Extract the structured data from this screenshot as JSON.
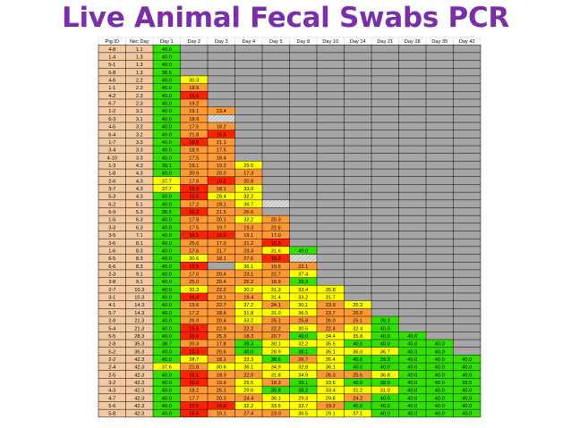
{
  "title": "Live Animal Fecal Swabs PCR",
  "colors": {
    "green": "#33e000",
    "yellow": "#ffff00",
    "orange": "#ff9933",
    "red": "#ff2200",
    "empty": "#a6a6a6",
    "hatch": "#dcdcdc",
    "id_cell": "#f3c8a2"
  },
  "chart_data": {
    "type": "table",
    "columns": [
      "Pig ID",
      "Nec Day",
      "Day 1",
      "Day 2",
      "Day 3",
      "Day 4",
      "Day 5",
      "Day 8",
      "Day 10",
      "Day 14",
      "Day 21",
      "Day 28",
      "Day 35",
      "Day 42"
    ],
    "rows": [
      [
        "4-8",
        "1.1",
        "40.0",
        "",
        "",
        "",
        "",
        "",
        "",
        "",
        "",
        "",
        "",
        ""
      ],
      [
        "1-4",
        "1.3",
        "40.0",
        "",
        "",
        "",
        "",
        "",
        "",
        "",
        "",
        "",
        "",
        ""
      ],
      [
        "5-1",
        "1.3",
        "40.0",
        "",
        "",
        "",
        "",
        "",
        "",
        "",
        "",
        "",
        "",
        ""
      ],
      [
        "6-8",
        "1.3",
        "38.5",
        "",
        "",
        "",
        "",
        "",
        "",
        "",
        "",
        "",
        "",
        ""
      ],
      [
        "4-6",
        "2.2",
        "40.0",
        "30.3",
        "",
        "",
        "",
        "",
        "",
        "",
        "",
        "",
        "",
        ""
      ],
      [
        "1-1",
        "2.3",
        "40.0",
        "18.9",
        "",
        "",
        "",
        "",
        "",
        "",
        "",
        "",
        "",
        ""
      ],
      [
        "4-2",
        "2.3",
        "40.0",
        "15.5",
        "",
        "",
        "",
        "",
        "",
        "",
        "",
        "",
        "",
        ""
      ],
      [
        "6-7",
        "2.3",
        "40.0",
        "19.2",
        "",
        "",
        "",
        "",
        "",
        "",
        "",
        "",
        "",
        ""
      ],
      [
        "1-2",
        "3.1",
        "40.0",
        "19.1",
        "23.4",
        "",
        "",
        "",
        "",
        "",
        "",
        "",
        "",
        ""
      ],
      [
        "6-3",
        "3.1",
        "40.0",
        "18.9",
        "/",
        "",
        "",
        "",
        "",
        "",
        "",
        "",
        "",
        ""
      ],
      [
        "4-5",
        "3.2",
        "40.0",
        "17.5",
        "18.2",
        "",
        "",
        "",
        "",
        "",
        "",
        "",
        "",
        ""
      ],
      [
        "6-4",
        "3.2",
        "40.0",
        "21.8",
        "16.5",
        "",
        "",
        "",
        "",
        "",
        "",
        "",
        "",
        ""
      ],
      [
        "1-7",
        "3.3",
        "40.0",
        "16.6",
        "21.1",
        "",
        "",
        "",
        "",
        "",
        "",
        "",
        "",
        ""
      ],
      [
        "3-4",
        "3.3",
        "40.0",
        "18.9",
        "17.5",
        "",
        "",
        "",
        "",
        "",
        "",
        "",
        "",
        ""
      ],
      [
        "4-10",
        "3.3",
        "40.0",
        "17.5",
        "18.4",
        "",
        "",
        "",
        "",
        "",
        "",
        "",
        "",
        ""
      ],
      [
        "1-3",
        "4.3",
        "39.1",
        "19.1",
        "19.2",
        "29.5",
        "",
        "",
        "",
        "",
        "",
        "",
        "",
        ""
      ],
      [
        "1-8",
        "4.3",
        "40.0",
        "20.9",
        "20.0",
        "17.3",
        "",
        "",
        "",
        "",
        "",
        "",
        "",
        ""
      ],
      [
        "2-6",
        "4.3",
        "37.7",
        "17.8",
        "16.2",
        "20.8",
        "",
        "",
        "",
        "",
        "",
        "",
        "",
        ""
      ],
      [
        "3-7",
        "4.3",
        "37.7",
        "15.9",
        "18.1",
        "33.0",
        "",
        "",
        "",
        "",
        "",
        "",
        "",
        ""
      ],
      [
        "5-3",
        "4.3",
        "40.0",
        "15.5",
        "28.4",
        "32.2",
        "",
        "",
        "",
        "",
        "",
        "",
        "",
        ""
      ],
      [
        "6-2",
        "5.1",
        "40.0",
        "17.2",
        "19.1",
        "36.7",
        "/",
        "",
        "",
        "",
        "",
        "",
        "",
        ""
      ],
      [
        "6-9",
        "5.3",
        "38.5",
        "16.2",
        "21.5",
        "26.6",
        "",
        "",
        "",
        "",
        "",
        "",
        "",
        ""
      ],
      [
        "1-5",
        "6.3",
        "40.0",
        "17.8",
        "20.1",
        "32.2",
        "20.3",
        "",
        "",
        "",
        "",
        "",
        "",
        ""
      ],
      [
        "3-3",
        "6.3",
        "40.0",
        "17.5",
        "19.7",
        "19.3",
        "22.6",
        "",
        "",
        "",
        "",
        "",
        "",
        ""
      ],
      [
        "3-5",
        "7.1",
        "40.0",
        "15.5",
        "16.0",
        "19.1",
        "17.0",
        "",
        "",
        "",
        "",
        "",
        "",
        ""
      ],
      [
        "3-6",
        "8.1",
        "40.0",
        "25.6",
        "17.0",
        "21.2",
        "16.5",
        "",
        "",
        "",
        "",
        "",
        "",
        ""
      ],
      [
        "1-6",
        "8.3",
        "40.0",
        "17.6",
        "21.7",
        "23.3",
        "31.6",
        "40.0",
        "",
        "",
        "",
        "",
        "",
        ""
      ],
      [
        "6-5",
        "8.3",
        "40.0",
        "30.6",
        "18.1",
        "27.6",
        "16.2",
        "/",
        "",
        "",
        "",
        "",
        "",
        ""
      ],
      [
        "6-6",
        "8.3",
        "40.0",
        "15.5",
        "",
        "36.1",
        "19.5",
        "22.1",
        "",
        "",
        "",
        "",
        "",
        ""
      ],
      [
        "2-3",
        "9.1",
        "40.0",
        "17.0",
        "20.4",
        "23.1",
        "22.7",
        "37.4",
        "",
        "",
        "",
        "",
        "",
        ""
      ],
      [
        "3-8",
        "9.1",
        "40.0",
        "25.0",
        "20.4",
        "26.2",
        "18.9",
        "39.3",
        "",
        "",
        "",
        "",
        "",
        ""
      ],
      [
        "2-7",
        "10.3",
        "40.0",
        "30.3",
        "22.2",
        "30.2",
        "31.3",
        "33.4",
        "35.8",
        "",
        "",
        "",
        "",
        ""
      ],
      [
        "3-1",
        "10.3",
        "40.0",
        "16.4",
        "19.1",
        "19.4",
        "31.4",
        "33.2",
        "31.7",
        "",
        "",
        "",
        "",
        ""
      ],
      [
        "4-1",
        "14.3",
        "40.0",
        "19.6",
        "22.7",
        "37.2",
        "24.1",
        "30.1",
        "23.9",
        "35.3",
        "",
        "",
        "",
        ""
      ],
      [
        "5-7",
        "14.3",
        "40.0",
        "17.2",
        "18.6",
        "31.8",
        "31.0",
        "36.5",
        "23.7",
        "26.0",
        "",
        "",
        "",
        ""
      ],
      [
        "2-9",
        "21.3",
        "40.0",
        "26.9",
        "20.4",
        "33.2",
        "25.1",
        "25.8",
        "26.0",
        "25.1",
        "39.3",
        "",
        "",
        ""
      ],
      [
        "5-4",
        "21.3",
        "40.0",
        "15.5",
        "22.9",
        "22.2",
        "22.2",
        "30.5",
        "22.4",
        "32.4",
        "40.0",
        "",
        "",
        ""
      ],
      [
        "5-5",
        "28.3",
        "40.0",
        "16.0",
        "25.3",
        "18.3",
        "20.7",
        "40.0",
        "34.4",
        "35.8",
        "40.0",
        "40.0",
        "",
        ""
      ],
      [
        "2-8",
        "35.3",
        "38.7",
        "20.3",
        "17.8",
        "38.3",
        "30.1",
        "32.2",
        "35.5",
        "40.0",
        "40.0",
        "40.0",
        "40.0",
        ""
      ],
      [
        "5-2",
        "35.3",
        "40.0",
        "15.3",
        "20.6",
        "40.0",
        "28.9",
        "38.1",
        "35.1",
        "36.0",
        "36.7",
        "40.0",
        "40.0",
        ""
      ],
      [
        "2-2",
        "42.3",
        "40.0",
        "28.7",
        "18.1",
        "33.3",
        "38.6",
        "26.7",
        "35.4",
        "40.0",
        "39.3",
        "40.0",
        "40.0",
        "40.0"
      ],
      [
        "2-4",
        "42.3",
        "37.6",
        "21.8",
        "30.6",
        "36.1",
        "34.9",
        "32.8",
        "36.1",
        "40.0",
        "40.0",
        "40.0",
        "40.0",
        "40.0"
      ],
      [
        "2-5",
        "42.3",
        "40.0",
        "16.1",
        "18.3",
        "22.0",
        "31.8",
        "34.9",
        "26.3",
        "25.5",
        "36.8",
        "40.0",
        "40.0",
        "40.0"
      ],
      [
        "3-2",
        "42.3",
        "40.0",
        "16.0",
        "19.9",
        "29.5",
        "18.3",
        "39.1",
        "33.6",
        "40.0",
        "38.0",
        "40.0",
        "40.0",
        "38.5"
      ],
      [
        "4-3",
        "42.3",
        "40.0",
        "18.2",
        "26.1",
        "29.6",
        "39.8",
        "38.2",
        "33.4",
        "31.2",
        "31.0",
        "40.0",
        "40.0",
        "40.0"
      ],
      [
        "4-7",
        "42.3",
        "40.0",
        "17.7",
        "20.3",
        "24.4",
        "36.1",
        "29.3",
        "29.8",
        "24.2",
        "40.0",
        "40.0",
        "40.0",
        "40.0"
      ],
      [
        "5-6",
        "42.3",
        "40.0",
        "15.5",
        "16.0",
        "32.2",
        "33.5",
        "33.7",
        "19.2",
        "40.0",
        "40.0",
        "40.0",
        "40.0",
        "40.0"
      ],
      [
        "5-8",
        "42.3",
        "40.0",
        "15.5",
        "19.1",
        "27.4",
        "23.0",
        "36.5",
        "29.1",
        "37.1",
        "40.0",
        "40.0",
        "40.0",
        "40.0"
      ]
    ]
  }
}
